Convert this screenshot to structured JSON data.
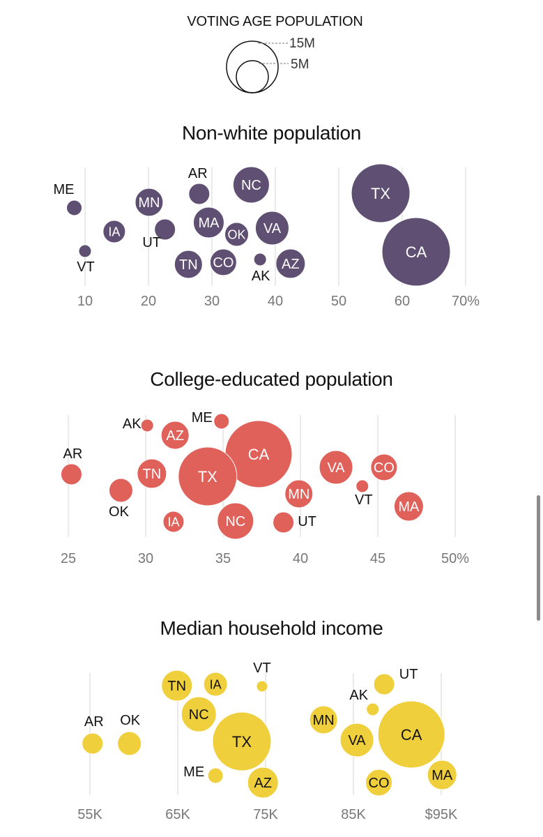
{
  "legend": {
    "title": "VOTING AGE POPULATION",
    "large_label": "15M",
    "small_label": "5M"
  },
  "chart_data": [
    {
      "type": "scatter",
      "title": "Non-white population",
      "size_encoding": "VOTING AGE POPULATION",
      "x_ticks": [
        "10",
        "20",
        "30",
        "40",
        "50",
        "60",
        "70%"
      ],
      "x_tick_values": [
        10,
        20,
        30,
        40,
        50,
        60,
        70
      ],
      "xlim": [
        10,
        70
      ],
      "color": "#5e4f73",
      "points": [
        {
          "label": "ME",
          "x": 8.3,
          "label_outside": "above"
        },
        {
          "label": "VT",
          "x": 10.0,
          "label_outside": "below"
        },
        {
          "label": "IA",
          "x": 14.6,
          "label_outside": "none"
        },
        {
          "label": "MN",
          "x": 20.1,
          "label_outside": "none"
        },
        {
          "label": "UT",
          "x": 22.6,
          "label_outside": "below-left"
        },
        {
          "label": "TN",
          "x": 26.3,
          "label_outside": "none"
        },
        {
          "label": "AR",
          "x": 28.0,
          "label_outside": "above"
        },
        {
          "label": "MA",
          "x": 29.5,
          "label_outside": "none"
        },
        {
          "label": "CO",
          "x": 31.8,
          "label_outside": "none"
        },
        {
          "label": "OK",
          "x": 33.9,
          "label_outside": "none"
        },
        {
          "label": "NC",
          "x": 36.2,
          "label_outside": "none"
        },
        {
          "label": "AK",
          "x": 37.6,
          "label_outside": "below"
        },
        {
          "label": "VA",
          "x": 39.5,
          "label_outside": "none"
        },
        {
          "label": "AZ",
          "x": 42.4,
          "label_outside": "none"
        },
        {
          "label": "TX",
          "x": 56.6,
          "label_outside": "none"
        },
        {
          "label": "CA",
          "x": 62.2,
          "label_outside": "none"
        }
      ]
    },
    {
      "type": "scatter",
      "title": "College-educated population",
      "size_encoding": "VOTING AGE POPULATION",
      "x_ticks": [
        "25",
        "30",
        "35",
        "40",
        "45",
        "50%"
      ],
      "x_tick_values": [
        25,
        30,
        35,
        40,
        45,
        50
      ],
      "xlim": [
        25,
        50
      ],
      "color": "#e0605a",
      "points": [
        {
          "label": "AR",
          "x": 25.2,
          "label_outside": "above"
        },
        {
          "label": "OK",
          "x": 28.4,
          "label_outside": "below-left"
        },
        {
          "label": "AK",
          "x": 30.1,
          "label_outside": "left"
        },
        {
          "label": "TN",
          "x": 30.4,
          "label_outside": "none"
        },
        {
          "label": "IA",
          "x": 31.8,
          "label_outside": "none"
        },
        {
          "label": "AZ",
          "x": 31.9,
          "label_outside": "none"
        },
        {
          "label": "TX",
          "x": 34.0,
          "label_outside": "none"
        },
        {
          "label": "ME",
          "x": 34.9,
          "label_outside": "left"
        },
        {
          "label": "NC",
          "x": 35.8,
          "label_outside": "none"
        },
        {
          "label": "CA",
          "x": 37.3,
          "label_outside": "none"
        },
        {
          "label": "UT",
          "x": 38.9,
          "label_outside": "right"
        },
        {
          "label": "MN",
          "x": 39.9,
          "label_outside": "none"
        },
        {
          "label": "VA",
          "x": 42.3,
          "label_outside": "none"
        },
        {
          "label": "VT",
          "x": 44.0,
          "label_outside": "below"
        },
        {
          "label": "CO",
          "x": 45.4,
          "label_outside": "none"
        },
        {
          "label": "MA",
          "x": 47.0,
          "label_outside": "none"
        }
      ]
    },
    {
      "type": "scatter",
      "title": "Median household income",
      "size_encoding": "VOTING AGE POPULATION",
      "x_ticks": [
        "55K",
        "65K",
        "75K",
        "85K",
        "$95K"
      ],
      "x_tick_values": [
        55,
        65,
        75,
        85,
        95
      ],
      "xlim": [
        55,
        95
      ],
      "color": "#f0cf3c",
      "points": [
        {
          "label": "AR",
          "x": 55.3,
          "label_outside": "above"
        },
        {
          "label": "OK",
          "x": 59.5,
          "label_outside": "above"
        },
        {
          "label": "TN",
          "x": 64.9,
          "label_outside": "none"
        },
        {
          "label": "NC",
          "x": 67.4,
          "label_outside": "none"
        },
        {
          "label": "IA",
          "x": 69.3,
          "label_outside": "none"
        },
        {
          "label": "ME",
          "x": 69.3,
          "label_outside": "left"
        },
        {
          "label": "TX",
          "x": 72.3,
          "label_outside": "none"
        },
        {
          "label": "VT",
          "x": 74.6,
          "label_outside": "above"
        },
        {
          "label": "AZ",
          "x": 74.7,
          "label_outside": "none"
        },
        {
          "label": "MN",
          "x": 81.6,
          "label_outside": "none"
        },
        {
          "label": "VA",
          "x": 85.4,
          "label_outside": "none"
        },
        {
          "label": "AK",
          "x": 87.2,
          "label_outside": "left-above"
        },
        {
          "label": "CO",
          "x": 87.9,
          "label_outside": "none"
        },
        {
          "label": "UT",
          "x": 88.5,
          "label_outside": "right"
        },
        {
          "label": "CA",
          "x": 91.6,
          "label_outside": "none"
        },
        {
          "label": "MA",
          "x": 95.1,
          "label_outside": "none"
        }
      ]
    }
  ]
}
